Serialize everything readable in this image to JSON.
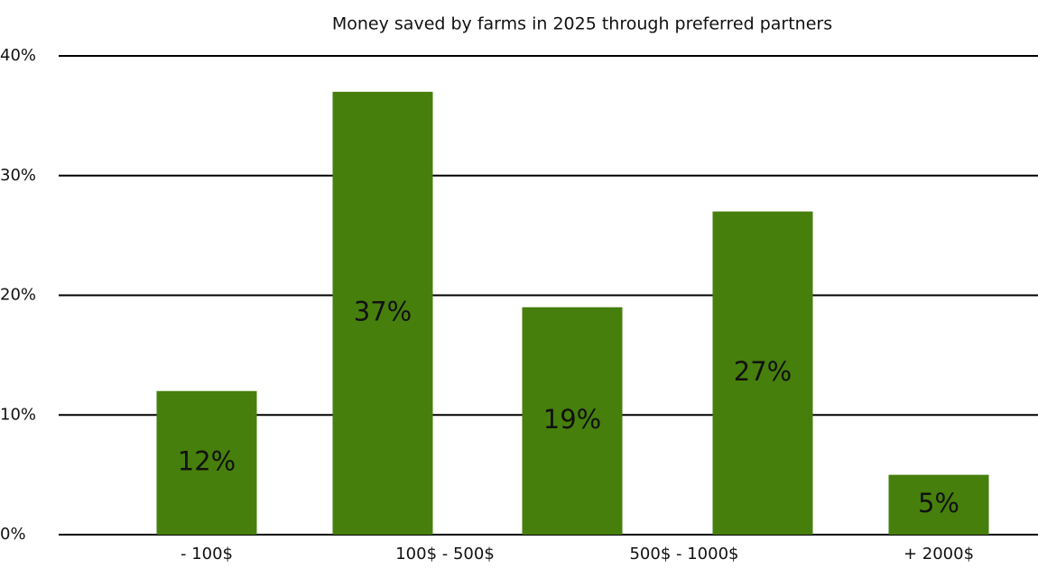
{
  "chart_data": {
    "type": "bar",
    "title": "Money saved by farms in 2025 through preferred partners",
    "categories": [
      "- 100$",
      "100$ - 500$",
      "500$ - 1000$",
      null,
      "+ 2000$"
    ],
    "values": [
      12,
      37,
      19,
      27,
      5
    ],
    "value_labels": [
      "12%",
      "37%",
      "19%",
      "27%",
      "5%"
    ],
    "color": "#467f0c",
    "ylim": [
      0,
      40
    ],
    "yticks": [
      {
        "value": 0,
        "label": "0%"
      },
      {
        "value": 10,
        "label": "10%"
      },
      {
        "value": 20,
        "label": "20%"
      },
      {
        "value": 30,
        "label": "30%"
      },
      {
        "value": 40,
        "label": "40%"
      }
    ],
    "grid": true
  }
}
